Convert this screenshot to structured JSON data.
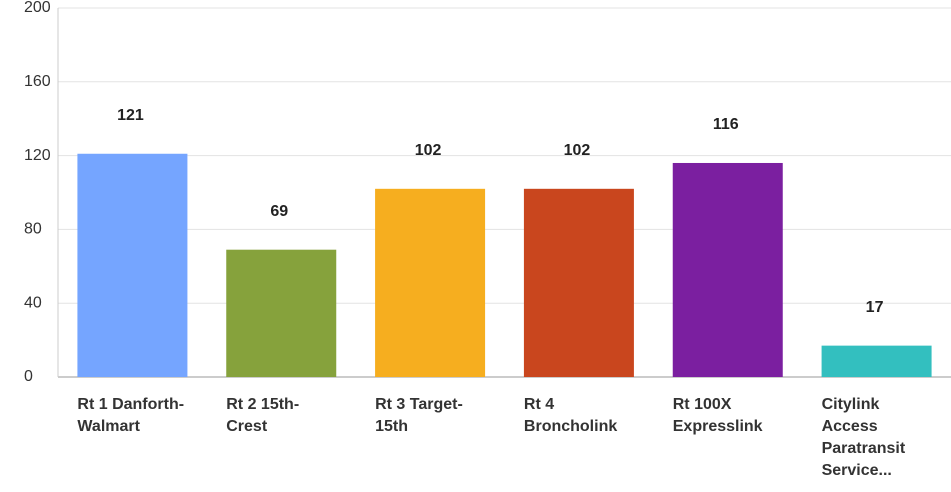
{
  "chart_data": {
    "type": "bar",
    "categories": [
      "Rt 1 Danforth-Walmart",
      "Rt 2 15th-Crest",
      "Rt 3 Target-15th",
      "Rt 4 Broncholink",
      "Rt 100X Expresslink",
      "Citylink Access Paratransit Service..."
    ],
    "values": [
      121,
      69,
      102,
      102,
      116,
      17
    ],
    "colors": [
      "#75a5ff",
      "#86a23c",
      "#f6ae1f",
      "#c9461e",
      "#7b1fa0",
      "#33bfbf"
    ],
    "ylim": [
      0,
      200
    ],
    "yticks": [
      0,
      40,
      80,
      120,
      160,
      200
    ],
    "grid": true
  }
}
